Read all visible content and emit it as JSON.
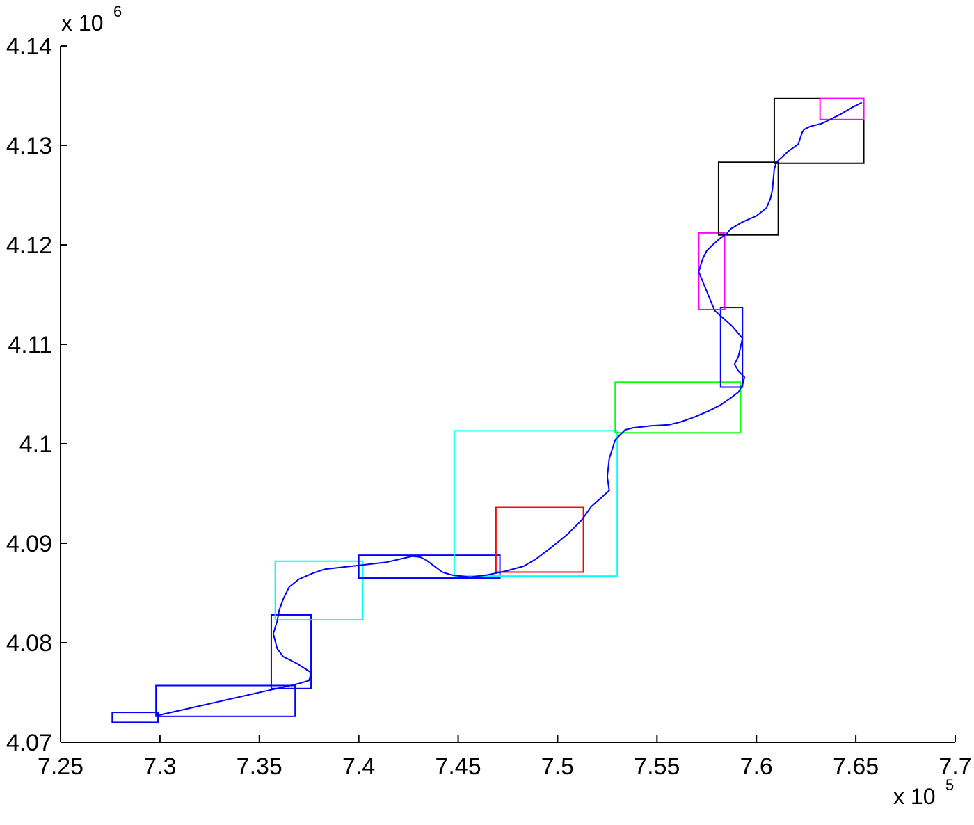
{
  "chart_data": {
    "type": "line",
    "title": "",
    "xlabel": "",
    "ylabel": "",
    "xlim": [
      725000,
      770000
    ],
    "ylim": [
      4070000,
      4140000
    ],
    "grid": false,
    "x_ticks": [
      725000,
      730000,
      735000,
      740000,
      745000,
      750000,
      755000,
      760000,
      765000,
      770000
    ],
    "x_tick_labels": [
      "7.25",
      "7.3",
      "7.35",
      "7.4",
      "7.45",
      "7.5",
      "7.55",
      "7.6",
      "7.65",
      "7.7"
    ],
    "y_ticks": [
      4070000,
      4080000,
      4090000,
      4100000,
      4110000,
      4120000,
      4130000,
      4140000
    ],
    "y_tick_labels": [
      "4.07",
      "4.08",
      "4.09",
      "4.1",
      "4.11",
      "4.12",
      "4.13",
      "4.14"
    ],
    "x_multiplier": {
      "base": "x 10",
      "exponent": "5"
    },
    "y_multiplier": {
      "base": "x 10",
      "exponent": "6"
    },
    "series": [
      {
        "color": "#0000ff",
        "points": [
          [
            729900,
            4072700
          ],
          [
            737000,
            4075900
          ],
          [
            737500,
            4076200
          ],
          [
            737600,
            4077000
          ],
          [
            736900,
            4077900
          ],
          [
            736200,
            4078600
          ],
          [
            735900,
            4079400
          ],
          [
            735700,
            4080900
          ],
          [
            735900,
            4082200
          ],
          [
            736000,
            4083300
          ],
          [
            736200,
            4084400
          ],
          [
            736500,
            4085600
          ],
          [
            737000,
            4086400
          ],
          [
            737700,
            4087000
          ],
          [
            738300,
            4087400
          ],
          [
            740100,
            4087800
          ],
          [
            741400,
            4088100
          ],
          [
            742700,
            4088700
          ],
          [
            743100,
            4088600
          ],
          [
            743400,
            4088300
          ],
          [
            743800,
            4087700
          ],
          [
            744200,
            4087100
          ],
          [
            744700,
            4086800
          ],
          [
            745600,
            4086600
          ],
          [
            746400,
            4086800
          ],
          [
            747400,
            4087200
          ],
          [
            748300,
            4087700
          ],
          [
            748900,
            4088400
          ],
          [
            749300,
            4089000
          ],
          [
            749700,
            4089600
          ],
          [
            750500,
            4090900
          ],
          [
            751200,
            4092300
          ],
          [
            751700,
            4093700
          ],
          [
            752600,
            4095300
          ],
          [
            752500,
            4096700
          ],
          [
            752600,
            4098500
          ],
          [
            752900,
            4100400
          ],
          [
            753400,
            4101400
          ],
          [
            753800,
            4101600
          ],
          [
            754700,
            4101800
          ],
          [
            755600,
            4101900
          ],
          [
            756200,
            4102200
          ],
          [
            756900,
            4102700
          ],
          [
            757600,
            4103300
          ],
          [
            758200,
            4103900
          ],
          [
            758700,
            4104600
          ],
          [
            759100,
            4105200
          ],
          [
            759300,
            4105900
          ],
          [
            759400,
            4106700
          ],
          [
            759100,
            4107300
          ],
          [
            758900,
            4108000
          ],
          [
            759100,
            4108800
          ],
          [
            759300,
            4110600
          ],
          [
            758800,
            4111800
          ],
          [
            757900,
            4113400
          ],
          [
            757100,
            4117300
          ],
          [
            757300,
            4118600
          ],
          [
            757500,
            4119400
          ],
          [
            757800,
            4120000
          ],
          [
            758200,
            4120700
          ],
          [
            758500,
            4121100
          ],
          [
            758700,
            4121600
          ],
          [
            759300,
            4122300
          ],
          [
            760000,
            4122900
          ],
          [
            760500,
            4123700
          ],
          [
            760700,
            4124600
          ],
          [
            760800,
            4125500
          ],
          [
            760900,
            4127600
          ],
          [
            761000,
            4128300
          ],
          [
            761600,
            4129400
          ],
          [
            762100,
            4130100
          ],
          [
            762300,
            4131300
          ],
          [
            762400,
            4131600
          ],
          [
            762700,
            4131900
          ],
          [
            763300,
            4132200
          ],
          [
            763700,
            4132600
          ],
          [
            764200,
            4133100
          ],
          [
            764800,
            4133800
          ],
          [
            765300,
            4134300
          ]
        ]
      }
    ],
    "boxes": [
      {
        "color": "#0000ff",
        "x1": 727600,
        "x2": 729900,
        "y1": 4072000,
        "y2": 4073000
      },
      {
        "color": "#0000ff",
        "x1": 729800,
        "x2": 736800,
        "y1": 4072600,
        "y2": 4075700
      },
      {
        "color": "#0000ff",
        "x1": 735600,
        "x2": 737600,
        "y1": 4075400,
        "y2": 4082800
      },
      {
        "color": "#00ffff",
        "x1": 735800,
        "x2": 740200,
        "y1": 4082300,
        "y2": 4088200
      },
      {
        "color": "#0000ff",
        "x1": 740000,
        "x2": 747100,
        "y1": 4086500,
        "y2": 4088800
      },
      {
        "color": "#00ffff",
        "x1": 744800,
        "x2": 753000,
        "y1": 4086700,
        "y2": 4101300
      },
      {
        "color": "#ff0000",
        "x1": 746900,
        "x2": 751300,
        "y1": 4087100,
        "y2": 4093600
      },
      {
        "color": "#00ff00",
        "x1": 752900,
        "x2": 759200,
        "y1": 4101100,
        "y2": 4106200
      },
      {
        "color": "#0000ff",
        "x1": 758200,
        "x2": 759300,
        "y1": 4105700,
        "y2": 4113700
      },
      {
        "color": "#ff00ff",
        "x1": 757100,
        "x2": 758400,
        "y1": 4113500,
        "y2": 4121200
      },
      {
        "color": "#000000",
        "x1": 758100,
        "x2": 761100,
        "y1": 4121000,
        "y2": 4128300
      },
      {
        "color": "#000000",
        "x1": 760900,
        "x2": 765400,
        "y1": 4128200,
        "y2": 4134700
      },
      {
        "color": "#ff00ff",
        "x1": 763200,
        "x2": 765400,
        "y1": 4132600,
        "y2": 4134700
      }
    ]
  }
}
